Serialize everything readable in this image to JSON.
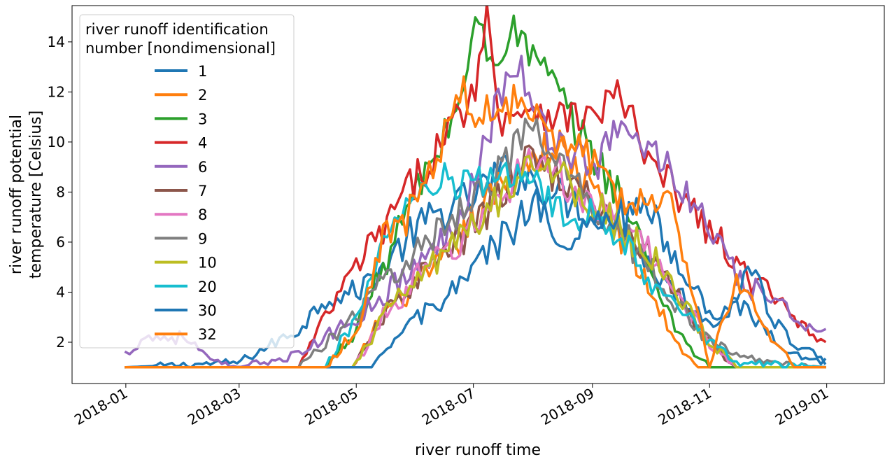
{
  "chart_data": {
    "type": "line",
    "xlabel": "river runoff time",
    "ylabel_lines": [
      "river runoff potential",
      "temperature [Celsius]"
    ],
    "x_range": [
      "2017-12-04",
      "2019-01-31"
    ],
    "ylim": [
      0.35,
      15.45
    ],
    "grid": false,
    "x_ticks": [
      {
        "date": "2018-01-01",
        "label": "2018-01"
      },
      {
        "date": "2018-03-01",
        "label": "2018-03"
      },
      {
        "date": "2018-05-01",
        "label": "2018-05"
      },
      {
        "date": "2018-07-01",
        "label": "2018-07"
      },
      {
        "date": "2018-09-01",
        "label": "2018-09"
      },
      {
        "date": "2018-11-01",
        "label": "2018-11"
      },
      {
        "date": "2019-01-01",
        "label": "2019-01"
      }
    ],
    "y_ticks": [
      2,
      4,
      6,
      8,
      10,
      12,
      14
    ],
    "legend": {
      "title_lines": [
        "river runoff identification",
        "number [nondimensional]"
      ],
      "placement": "upper-left"
    },
    "series": [
      {
        "name": "1",
        "color": "#1f77b4",
        "values": [
          [
            "2018-01-01",
            1.0
          ],
          [
            "2018-02-01",
            1.1
          ],
          [
            "2018-03-01",
            1.2
          ],
          [
            "2018-04-01",
            2.5
          ],
          [
            "2018-04-15",
            3.8
          ],
          [
            "2018-05-01",
            4.0
          ],
          [
            "2018-05-15",
            5.0
          ],
          [
            "2018-06-01",
            6.5
          ],
          [
            "2018-06-15",
            7.2
          ],
          [
            "2018-07-01",
            7.8
          ],
          [
            "2018-07-15",
            8.8
          ],
          [
            "2018-08-01",
            8.5
          ],
          [
            "2018-08-15",
            7.8
          ],
          [
            "2018-09-01",
            7.3
          ],
          [
            "2018-09-15",
            6.8
          ],
          [
            "2018-10-01",
            5.0
          ],
          [
            "2018-10-15",
            4.0
          ],
          [
            "2018-11-01",
            2.8
          ],
          [
            "2018-11-15",
            3.5
          ],
          [
            "2018-12-01",
            2.5
          ],
          [
            "2018-12-15",
            1.5
          ],
          [
            "2019-01-01",
            1.2
          ]
        ]
      },
      {
        "name": "2",
        "color": "#ff7f0e",
        "values": [
          [
            "2018-01-01",
            1.0
          ],
          [
            "2018-04-30",
            1.0
          ],
          [
            "2018-05-15",
            3.2
          ],
          [
            "2018-06-01",
            4.2
          ],
          [
            "2018-06-15",
            5.2
          ],
          [
            "2018-07-01",
            6.8
          ],
          [
            "2018-07-15",
            8.2
          ],
          [
            "2018-08-01",
            9.5
          ],
          [
            "2018-08-15",
            9.8
          ],
          [
            "2018-09-01",
            8.0
          ],
          [
            "2018-09-15",
            6.5
          ],
          [
            "2018-10-01",
            4.0
          ],
          [
            "2018-10-15",
            2.0
          ],
          [
            "2018-10-25",
            1.0
          ],
          [
            "2019-01-01",
            1.0
          ]
        ]
      },
      {
        "name": "3",
        "color": "#2ca02c",
        "values": [
          [
            "2018-01-01",
            1.0
          ],
          [
            "2018-04-15",
            1.0
          ],
          [
            "2018-05-01",
            2.5
          ],
          [
            "2018-05-15",
            5.0
          ],
          [
            "2018-06-01",
            8.0
          ],
          [
            "2018-06-15",
            10.0
          ],
          [
            "2018-06-25",
            12.0
          ],
          [
            "2018-07-03",
            15.0
          ],
          [
            "2018-07-10",
            13.0
          ],
          [
            "2018-07-20",
            14.5
          ],
          [
            "2018-08-01",
            13.5
          ],
          [
            "2018-08-10",
            12.5
          ],
          [
            "2018-08-20",
            11.0
          ],
          [
            "2018-09-01",
            9.5
          ],
          [
            "2018-09-15",
            8.0
          ],
          [
            "2018-10-01",
            5.0
          ],
          [
            "2018-10-15",
            2.5
          ],
          [
            "2018-10-25",
            1.5
          ],
          [
            "2018-11-01",
            1.0
          ],
          [
            "2019-01-01",
            1.0
          ]
        ]
      },
      {
        "name": "4",
        "color": "#d62728",
        "values": [
          [
            "2018-01-01",
            1.0
          ],
          [
            "2018-04-01",
            1.0
          ],
          [
            "2018-04-15",
            3.0
          ],
          [
            "2018-05-01",
            5.0
          ],
          [
            "2018-05-15",
            6.5
          ],
          [
            "2018-06-01",
            8.5
          ],
          [
            "2018-06-15",
            10.0
          ],
          [
            "2018-07-01",
            12.0
          ],
          [
            "2018-07-08",
            15.0
          ],
          [
            "2018-07-15",
            11.0
          ],
          [
            "2018-08-01",
            11.5
          ],
          [
            "2018-08-15",
            11.0
          ],
          [
            "2018-09-01",
            11.0
          ],
          [
            "2018-09-15",
            12.0
          ],
          [
            "2018-10-01",
            9.0
          ],
          [
            "2018-10-15",
            8.0
          ],
          [
            "2018-11-01",
            6.5
          ],
          [
            "2018-11-15",
            5.0
          ],
          [
            "2018-12-01",
            4.0
          ],
          [
            "2018-12-15",
            3.0
          ],
          [
            "2019-01-01",
            2.0
          ]
        ]
      },
      {
        "name": "6",
        "color": "#9467bd",
        "values": [
          [
            "2018-01-01",
            1.5
          ],
          [
            "2018-01-10",
            2.2
          ],
          [
            "2018-02-01",
            2.2
          ],
          [
            "2018-02-15",
            1.2
          ],
          [
            "2018-03-01",
            1.0
          ],
          [
            "2018-04-01",
            1.5
          ],
          [
            "2018-05-01",
            3.0
          ],
          [
            "2018-06-01",
            5.0
          ],
          [
            "2018-06-15",
            6.0
          ],
          [
            "2018-07-01",
            8.5
          ],
          [
            "2018-07-15",
            12.0
          ],
          [
            "2018-07-25",
            13.2
          ],
          [
            "2018-08-01",
            11.0
          ],
          [
            "2018-08-15",
            10.0
          ],
          [
            "2018-09-01",
            9.0
          ],
          [
            "2018-09-15",
            10.5
          ],
          [
            "2018-10-01",
            9.8
          ],
          [
            "2018-10-15",
            8.5
          ],
          [
            "2018-11-01",
            6.5
          ],
          [
            "2018-11-15",
            4.5
          ],
          [
            "2018-12-01",
            3.8
          ],
          [
            "2018-12-15",
            3.0
          ],
          [
            "2019-01-01",
            2.5
          ]
        ]
      },
      {
        "name": "7",
        "color": "#8c564b",
        "values": [
          [
            "2018-01-01",
            1.0
          ],
          [
            "2018-04-30",
            1.0
          ],
          [
            "2018-05-15",
            3.0
          ],
          [
            "2018-06-01",
            4.5
          ],
          [
            "2018-07-01",
            6.5
          ],
          [
            "2018-08-01",
            9.5
          ],
          [
            "2018-09-01",
            7.5
          ],
          [
            "2018-10-01",
            5.5
          ],
          [
            "2018-11-01",
            2.0
          ],
          [
            "2018-11-15",
            1.0
          ],
          [
            "2019-01-01",
            1.0
          ]
        ]
      },
      {
        "name": "8",
        "color": "#e377c2",
        "values": [
          [
            "2018-01-01",
            1.0
          ],
          [
            "2018-04-30",
            1.0
          ],
          [
            "2018-05-15",
            3.0
          ],
          [
            "2018-06-01",
            4.5
          ],
          [
            "2018-07-01",
            6.5
          ],
          [
            "2018-08-01",
            9.5
          ],
          [
            "2018-09-01",
            7.5
          ],
          [
            "2018-10-01",
            5.5
          ],
          [
            "2018-11-01",
            2.0
          ],
          [
            "2018-11-15",
            1.0
          ],
          [
            "2019-01-01",
            1.0
          ]
        ]
      },
      {
        "name": "9",
        "color": "#7f7f7f",
        "values": [
          [
            "2018-01-01",
            1.0
          ],
          [
            "2018-04-01",
            1.0
          ],
          [
            "2018-04-15",
            2.0
          ],
          [
            "2018-05-01",
            3.0
          ],
          [
            "2018-05-15",
            4.5
          ],
          [
            "2018-06-01",
            5.5
          ],
          [
            "2018-06-15",
            6.5
          ],
          [
            "2018-07-01",
            8.0
          ],
          [
            "2018-07-15",
            9.0
          ],
          [
            "2018-08-01",
            10.5
          ],
          [
            "2018-08-15",
            9.0
          ],
          [
            "2018-09-01",
            7.5
          ],
          [
            "2018-09-15",
            6.5
          ],
          [
            "2018-10-01",
            5.0
          ],
          [
            "2018-10-15",
            3.5
          ],
          [
            "2018-11-01",
            2.0
          ],
          [
            "2018-11-15",
            1.5
          ],
          [
            "2018-12-01",
            1.2
          ],
          [
            "2019-01-01",
            1.0
          ]
        ]
      },
      {
        "name": "10",
        "color": "#bcbd22",
        "values": [
          [
            "2018-01-01",
            1.0
          ],
          [
            "2018-04-30",
            1.0
          ],
          [
            "2018-05-15",
            3.0
          ],
          [
            "2018-06-01",
            4.5
          ],
          [
            "2018-07-01",
            6.5
          ],
          [
            "2018-08-01",
            9.5
          ],
          [
            "2018-09-01",
            7.5
          ],
          [
            "2018-10-01",
            5.5
          ],
          [
            "2018-11-01",
            2.0
          ],
          [
            "2018-11-15",
            1.0
          ],
          [
            "2019-01-01",
            1.0
          ]
        ]
      },
      {
        "name": "20",
        "color": "#17becf",
        "values": [
          [
            "2018-01-01",
            1.0
          ],
          [
            "2018-04-15",
            1.0
          ],
          [
            "2018-05-01",
            3.0
          ],
          [
            "2018-05-15",
            6.0
          ],
          [
            "2018-06-01",
            7.5
          ],
          [
            "2018-06-15",
            8.5
          ],
          [
            "2018-07-01",
            8.0
          ],
          [
            "2018-07-15",
            9.0
          ],
          [
            "2018-08-01",
            8.5
          ],
          [
            "2018-08-15",
            7.0
          ],
          [
            "2018-09-01",
            7.0
          ],
          [
            "2018-09-15",
            6.5
          ],
          [
            "2018-10-01",
            4.5
          ],
          [
            "2018-10-15",
            3.5
          ],
          [
            "2018-11-01",
            2.0
          ],
          [
            "2018-11-15",
            1.2
          ],
          [
            "2019-01-01",
            1.0
          ]
        ]
      },
      {
        "name": "30",
        "color": "#1f77b4",
        "values": [
          [
            "2018-01-01",
            1.0
          ],
          [
            "2018-05-10",
            1.0
          ],
          [
            "2018-05-20",
            2.0
          ],
          [
            "2018-06-01",
            3.0
          ],
          [
            "2018-06-15",
            3.5
          ],
          [
            "2018-07-01",
            5.0
          ],
          [
            "2018-07-15",
            6.0
          ],
          [
            "2018-08-01",
            7.5
          ],
          [
            "2018-08-15",
            6.5
          ],
          [
            "2018-09-01",
            6.5
          ],
          [
            "2018-09-15",
            7.0
          ],
          [
            "2018-10-01",
            7.0
          ],
          [
            "2018-10-15",
            5.5
          ],
          [
            "2018-11-01",
            3.0
          ],
          [
            "2018-11-15",
            3.5
          ],
          [
            "2018-11-25",
            5.5
          ],
          [
            "2018-12-01",
            3.0
          ],
          [
            "2018-12-15",
            2.0
          ],
          [
            "2019-01-01",
            1.2
          ]
        ]
      },
      {
        "name": "32",
        "color": "#ff7f0e",
        "values": [
          [
            "2018-01-01",
            1.0
          ],
          [
            "2018-04-15",
            1.0
          ],
          [
            "2018-05-01",
            2.5
          ],
          [
            "2018-05-15",
            6.0
          ],
          [
            "2018-06-01",
            7.5
          ],
          [
            "2018-06-15",
            10.0
          ],
          [
            "2018-06-25",
            12.0
          ],
          [
            "2018-07-05",
            11.0
          ],
          [
            "2018-07-15",
            11.5
          ],
          [
            "2018-08-01",
            11.5
          ],
          [
            "2018-08-15",
            10.0
          ],
          [
            "2018-09-01",
            9.5
          ],
          [
            "2018-09-15",
            8.0
          ],
          [
            "2018-10-01",
            7.5
          ],
          [
            "2018-10-10",
            8.5
          ],
          [
            "2018-10-15",
            6.0
          ],
          [
            "2018-10-25",
            3.5
          ],
          [
            "2018-11-01",
            1.0
          ],
          [
            "2018-11-15",
            4.5
          ],
          [
            "2018-12-01",
            2.5
          ],
          [
            "2018-12-15",
            1.0
          ],
          [
            "2019-01-01",
            1.0
          ]
        ]
      }
    ]
  }
}
